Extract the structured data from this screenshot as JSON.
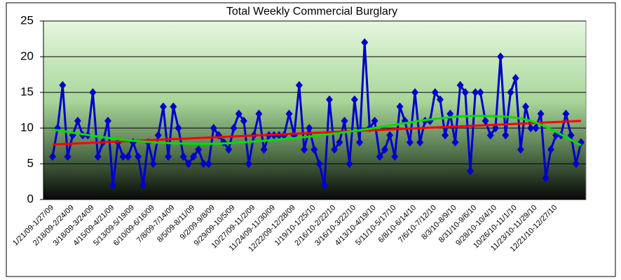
{
  "chart_data": {
    "type": "line",
    "title": "Total Weekly Commercial Burglary",
    "categories": [
      "1/21/09-1/27/09",
      null,
      null,
      null,
      "2/18/09-2/24/09",
      null,
      null,
      null,
      "3/18/09-3/24/09",
      null,
      null,
      null,
      "4/15/09-4/21/09",
      null,
      null,
      null,
      "5/13/09-5/19/09",
      null,
      null,
      null,
      "6/10/09-6/16/09",
      null,
      null,
      null,
      "7/8/09-7/14/09",
      null,
      null,
      null,
      "8/5/09-8/11/09",
      null,
      null,
      null,
      "9/2/09-9/8/09",
      null,
      null,
      null,
      "9/29/09-10/5/09",
      null,
      null,
      null,
      "10/27/09-11/2/09",
      null,
      null,
      null,
      "11/24/09-11/30/09",
      null,
      null,
      null,
      "12/22/09-12/28/09",
      null,
      null,
      null,
      "1/19/10-1/25/10",
      null,
      null,
      null,
      "2/16/10-2/22/10",
      null,
      null,
      null,
      "3/16/10-3/22/10",
      null,
      null,
      null,
      "4/13/10-4/19/10",
      null,
      null,
      null,
      "5/11/10-5/17/10",
      null,
      null,
      null,
      "6/8/10-6/14/10",
      null,
      null,
      null,
      "7/6/10-7/12/10",
      null,
      null,
      null,
      "8/3/10-8/9/10",
      null,
      null,
      null,
      "8/31/10-9/6/10",
      null,
      null,
      null,
      "9/28/10-10/4/10",
      null,
      null,
      null,
      "10/26/10-11/1/10",
      null,
      null,
      null,
      "11/23/10-11/29/10",
      null,
      null,
      null,
      "12/21/10-12/27/10",
      null,
      null,
      null,
      null,
      null
    ],
    "series": [
      {
        "color": "#0000cc",
        "values": [
          6,
          10,
          16,
          6,
          9,
          11,
          9,
          9,
          15,
          6,
          8,
          11,
          2,
          8,
          6,
          6,
          8,
          6,
          2,
          8,
          5,
          9,
          13,
          6,
          13,
          10,
          6,
          5,
          6,
          7,
          5,
          5,
          10,
          9,
          8,
          7,
          10,
          12,
          11,
          5,
          9,
          12,
          7,
          9,
          9,
          9,
          9,
          12,
          9,
          16,
          7,
          10,
          7,
          5,
          2,
          14,
          7,
          8,
          11,
          5,
          14,
          8,
          22,
          10,
          11,
          6,
          7,
          9,
          6,
          13,
          11,
          8,
          15,
          8,
          11,
          11,
          15,
          14,
          9,
          12,
          8,
          16,
          15,
          4,
          15,
          15,
          11,
          9,
          10,
          20,
          9,
          15,
          17,
          7,
          13,
          10,
          10,
          12,
          3,
          7,
          9,
          9,
          12,
          9,
          5,
          8
        ]
      }
    ],
    "trendlines": [
      {
        "color": "#ff0000",
        "x": [
          0,
          105
        ],
        "values": [
          7.7,
          11
        ]
      },
      {
        "color": "#00e000",
        "x": [
          0,
          15,
          30,
          45,
          60,
          75,
          85,
          95,
          105
        ],
        "values": [
          9.8,
          8.3,
          7.8,
          8.4,
          9.6,
          11.2,
          11.7,
          11,
          7.6
        ]
      }
    ],
    "ylim": [
      0,
      25
    ],
    "yticks": [
      0,
      5,
      10,
      15,
      20,
      25
    ],
    "grid": true
  }
}
